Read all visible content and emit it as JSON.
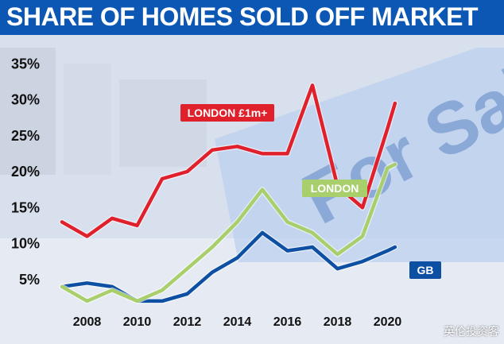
{
  "title": "SHARE OF HOMES SOLD OFF MARKET",
  "watermark": "英伦投资客",
  "colors": {
    "title_bg": "#0b57b3",
    "london_1m": "#e0202b",
    "london": "#a9cf6d",
    "gb": "#0d4fa3",
    "sign_text": "#5f86c6"
  },
  "background_sign_text": "For Sale",
  "chart_data": {
    "type": "line",
    "title": "SHARE OF HOMES SOLD OFF MARKET",
    "xlabel": "",
    "ylabel": "",
    "xlim": [
      2007,
      2020.5
    ],
    "ylim": [
      0,
      36
    ],
    "y_ticks": [
      "5%",
      "10%",
      "15%",
      "20%",
      "25%",
      "30%",
      "35%"
    ],
    "x_ticks": [
      "2008",
      "2010",
      "2012",
      "2014",
      "2016",
      "2018",
      "2020"
    ],
    "grid": false,
    "series": [
      {
        "name": "LONDON £1m+",
        "color": "#e0202b",
        "x": [
          2007,
          2008,
          2009,
          2010,
          2011,
          2012,
          2013,
          2014,
          2015,
          2016,
          2017,
          2018,
          2019,
          2020,
          2020.3
        ],
        "y": [
          13,
          11,
          13.5,
          12.5,
          19,
          20,
          23,
          23.5,
          22.5,
          22.5,
          32,
          18,
          15,
          26,
          29.5
        ]
      },
      {
        "name": "LONDON",
        "color": "#a9cf6d",
        "x": [
          2007,
          2008,
          2009,
          2010,
          2011,
          2012,
          2013,
          2014,
          2015,
          2016,
          2017,
          2018,
          2019,
          2020,
          2020.3
        ],
        "y": [
          4,
          2,
          3.5,
          2,
          3.5,
          6.5,
          9.5,
          13,
          17.5,
          13,
          11.5,
          8.5,
          11,
          20.5,
          21
        ]
      },
      {
        "name": "GB",
        "color": "#0d4fa3",
        "x": [
          2007,
          2008,
          2009,
          2010,
          2011,
          2012,
          2013,
          2014,
          2015,
          2016,
          2017,
          2018,
          2019,
          2020,
          2020.3
        ],
        "y": [
          4,
          4.5,
          4,
          2,
          2,
          3,
          6,
          8,
          11.5,
          9,
          9.5,
          6.5,
          7.5,
          9,
          9.5
        ]
      }
    ],
    "labels": [
      {
        "text": "LONDON £1m+",
        "series": "LONDON £1m+",
        "bg": "#e0202b",
        "fg": "#ffffff"
      },
      {
        "text": "LONDON",
        "series": "LONDON",
        "bg": "#a9cf6d",
        "fg": "#ffffff"
      },
      {
        "text": "GB",
        "series": "GB",
        "bg": "#0d4fa3",
        "fg": "#ffffff"
      }
    ]
  }
}
